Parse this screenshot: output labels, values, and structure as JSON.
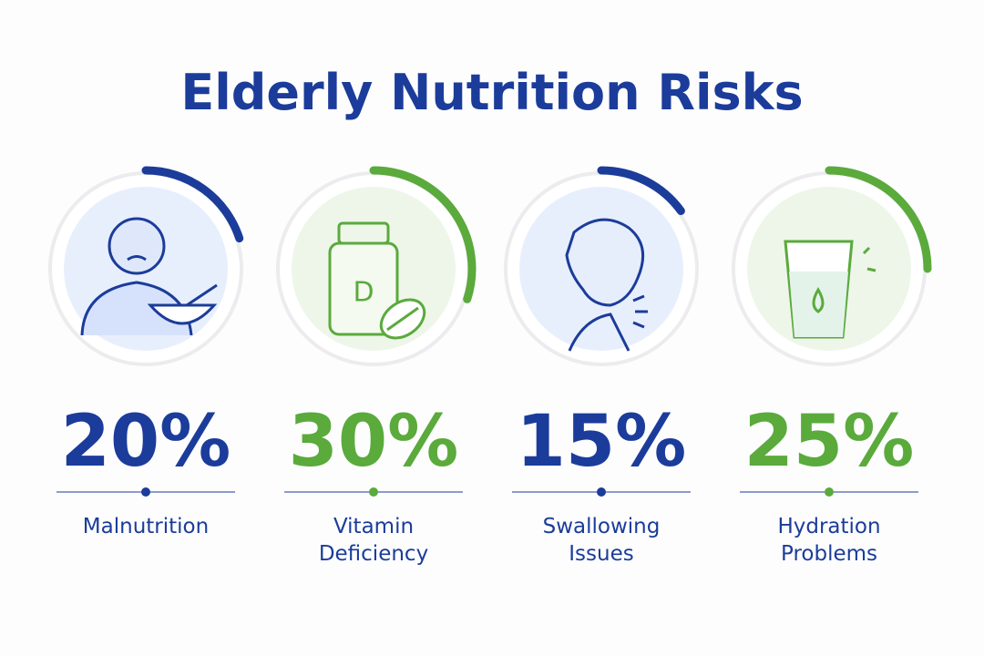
{
  "chart_data": {
    "type": "progress-ring",
    "title": "Elderly Nutrition Risks",
    "categories": [
      "Malnutrition",
      "Vitamin Deficiency",
      "Swallowing Issues",
      "Hydration Problems"
    ],
    "values": [
      20,
      30,
      15,
      25
    ],
    "value_labels": [
      "20%",
      "30%",
      "15%",
      "25%"
    ],
    "colors": [
      "#1b3c9a",
      "#5aaa3c",
      "#1b3c9a",
      "#5aaa3c"
    ]
  },
  "icon_text": "D"
}
